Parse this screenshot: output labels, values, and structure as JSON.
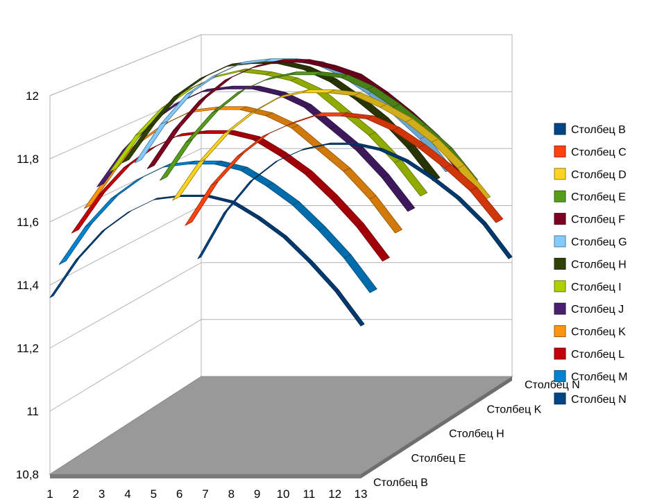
{
  "chart_data": {
    "type": "line",
    "variant": "3d-ribbon",
    "x": [
      1,
      2,
      3,
      4,
      5,
      6,
      7,
      8,
      9,
      10,
      11,
      12,
      13
    ],
    "x_tick_labels": [
      "1",
      "2",
      "3",
      "4",
      "5",
      "6",
      "7",
      "8",
      "9",
      "10",
      "11",
      "12",
      "13"
    ],
    "ylim": [
      10.8,
      12
    ],
    "y_tick_labels": [
      "10,8",
      "11",
      "11,2",
      "11,4",
      "11,6",
      "11,8",
      "12"
    ],
    "depth_labels": [
      "Столбец B",
      "Столбец E",
      "Столбец H",
      "Столбец K",
      "Столбец N"
    ],
    "legend_position": "right",
    "grid": true,
    "series": [
      {
        "name": "Столбец B",
        "color": "#004586",
        "values": [
          11.22,
          11.38,
          11.49,
          11.56,
          11.6,
          11.62,
          11.62,
          11.6,
          11.56,
          11.5,
          11.43,
          11.34,
          11.22
        ]
      },
      {
        "name": "Столбец C",
        "color": "#ff420e",
        "values": [
          11.36,
          11.5,
          11.6,
          11.67,
          11.71,
          11.74,
          11.74,
          11.73,
          11.69,
          11.63,
          11.56,
          11.48,
          11.37
        ]
      },
      {
        "name": "Столбец D",
        "color": "#ffd320",
        "values": [
          11.47,
          11.6,
          11.7,
          11.77,
          11.82,
          11.84,
          11.84,
          11.83,
          11.79,
          11.74,
          11.67,
          11.58,
          11.47
        ]
      },
      {
        "name": "Столбец E",
        "color": "#579d1c",
        "values": [
          11.56,
          11.69,
          11.79,
          11.86,
          11.9,
          11.92,
          11.92,
          11.91,
          11.87,
          11.81,
          11.74,
          11.66,
          11.55
        ]
      },
      {
        "name": "Столбец F",
        "color": "#7e0021",
        "values": [
          11.62,
          11.75,
          11.85,
          11.92,
          11.96,
          11.98,
          11.98,
          11.96,
          11.93,
          11.87,
          11.8,
          11.72,
          11.61
        ]
      },
      {
        "name": "Столбец G",
        "color": "#83caff",
        "values": [
          11.66,
          11.79,
          11.89,
          11.95,
          11.99,
          12.0,
          12.0,
          11.99,
          11.95,
          11.89,
          11.82,
          11.74,
          11.63
        ]
      },
      {
        "name": "Столбец H",
        "color": "#314004",
        "values": [
          11.68,
          11.8,
          11.9,
          11.96,
          12.0,
          12.01,
          12.01,
          11.99,
          11.95,
          11.89,
          11.82,
          11.73,
          11.62
        ]
      },
      {
        "name": "Столбец I",
        "color": "#aecf00",
        "values": [
          11.67,
          11.79,
          11.88,
          11.94,
          11.98,
          12.0,
          11.99,
          11.97,
          11.93,
          11.86,
          11.79,
          11.7,
          11.59
        ]
      },
      {
        "name": "Столбец J",
        "color": "#4b1f6f",
        "values": [
          11.64,
          11.76,
          11.85,
          11.91,
          11.95,
          11.96,
          11.96,
          11.94,
          11.9,
          11.83,
          11.76,
          11.67,
          11.56
        ]
      },
      {
        "name": "Столбец K",
        "color": "#ff950e",
        "values": [
          11.59,
          11.71,
          11.8,
          11.86,
          11.9,
          11.91,
          11.91,
          11.89,
          11.85,
          11.78,
          11.71,
          11.62,
          11.51
        ]
      },
      {
        "name": "Столбец L",
        "color": "#c5000b",
        "values": [
          11.53,
          11.65,
          11.74,
          11.8,
          11.84,
          11.85,
          11.85,
          11.83,
          11.78,
          11.72,
          11.64,
          11.55,
          11.44
        ]
      },
      {
        "name": "Столбец M",
        "color": "#0084d1",
        "values": [
          11.45,
          11.57,
          11.66,
          11.72,
          11.76,
          11.77,
          11.77,
          11.75,
          11.7,
          11.64,
          11.56,
          11.47,
          11.36
        ]
      },
      {
        "name": "Столбец N",
        "color": "#004586",
        "values": [
          11.36,
          11.48,
          11.57,
          11.63,
          11.67,
          11.68,
          11.68,
          11.66,
          11.61,
          11.55,
          11.47,
          11.38,
          11.27
        ]
      }
    ]
  }
}
